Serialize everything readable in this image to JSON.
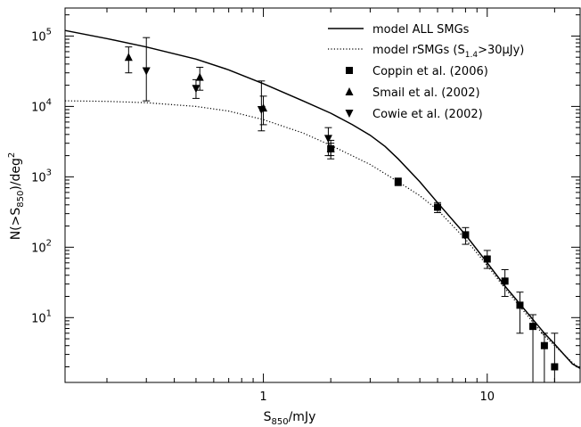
{
  "chart_data": {
    "type": "scatter",
    "title": "",
    "xlabel": {
      "main": "S",
      "sub": "850",
      "tail": "/mJy"
    },
    "ylabel": {
      "pre": "N(>S",
      "sub": "850",
      "mid": ")/deg",
      "sup": "2"
    },
    "xscale": "log",
    "yscale": "log",
    "xlim": [
      0.13,
      26
    ],
    "ylim": [
      1.2,
      250000
    ],
    "grid": false,
    "legend_position": "top-right",
    "x_tick_labels": [
      {
        "value": 1,
        "label": "1"
      },
      {
        "value": 10,
        "label": "10"
      }
    ],
    "y_tick_labels": [
      {
        "value": 10,
        "base": "10",
        "exp": "1"
      },
      {
        "value": 100,
        "base": "10",
        "exp": "2"
      },
      {
        "value": 1000,
        "base": "10",
        "exp": "3"
      },
      {
        "value": 10000,
        "base": "10",
        "exp": "4"
      },
      {
        "value": 100000,
        "base": "10",
        "exp": "5"
      }
    ],
    "series": [
      {
        "name": "model ALL SMGs",
        "style": "solid",
        "points": [
          [
            0.13,
            120000
          ],
          [
            0.2,
            92000
          ],
          [
            0.3,
            70000
          ],
          [
            0.5,
            47000
          ],
          [
            0.7,
            33000
          ],
          [
            1.0,
            21000
          ],
          [
            1.5,
            12000
          ],
          [
            2.0,
            8000
          ],
          [
            2.5,
            5500
          ],
          [
            3.0,
            3900
          ],
          [
            3.5,
            2700
          ],
          [
            4.0,
            1800
          ],
          [
            5.0,
            850
          ],
          [
            6.0,
            430
          ],
          [
            8.0,
            150
          ],
          [
            10.0,
            60
          ],
          [
            12.0,
            28
          ],
          [
            15.0,
            12
          ],
          [
            18.0,
            6
          ],
          [
            20.0,
            4.2
          ],
          [
            22.0,
            3
          ],
          [
            24.0,
            2.2
          ],
          [
            26.0,
            1.9
          ]
        ]
      },
      {
        "name": "model rSMGs (S",
        "name_sub": "1.4",
        "name_tail": ">30μJy)",
        "style": "dotted",
        "points": [
          [
            0.13,
            12000
          ],
          [
            0.2,
            11800
          ],
          [
            0.3,
            11300
          ],
          [
            0.5,
            10000
          ],
          [
            0.7,
            8600
          ],
          [
            1.0,
            6500
          ],
          [
            1.5,
            4200
          ],
          [
            2.0,
            2800
          ],
          [
            3.0,
            1500
          ],
          [
            4.0,
            850
          ],
          [
            5.0,
            540
          ],
          [
            6.0,
            340
          ],
          [
            8.0,
            130
          ],
          [
            10.0,
            55
          ],
          [
            12.0,
            26
          ],
          [
            15.0,
            11
          ],
          [
            18.0,
            5.5
          ],
          [
            20.0,
            4
          ],
          [
            22.0,
            3
          ],
          [
            24.0,
            2.3
          ],
          [
            26.0,
            1.9
          ]
        ]
      },
      {
        "name": "Coppin et al. (2006)",
        "marker": "square",
        "points": [
          {
            "x": 2.0,
            "y": 2500,
            "lo": 2000,
            "hi": 3000
          },
          {
            "x": 4.0,
            "y": 850,
            "lo": 750,
            "hi": 960
          },
          {
            "x": 6.0,
            "y": 370,
            "lo": 310,
            "hi": 430
          },
          {
            "x": 8.0,
            "y": 150,
            "lo": 110,
            "hi": 190
          },
          {
            "x": 10.0,
            "y": 68,
            "lo": 50,
            "hi": 90
          },
          {
            "x": 12.0,
            "y": 33,
            "lo": 20,
            "hi": 48
          },
          {
            "x": 14.0,
            "y": 15,
            "lo": 6,
            "hi": 23
          },
          {
            "x": 16.0,
            "y": 7.5,
            "lo": 1.2,
            "hi": 11
          },
          {
            "x": 18.0,
            "y": 4,
            "lo": 1.2,
            "hi": 6
          },
          {
            "x": 20.0,
            "y": 2,
            "lo": 1.2,
            "hi": 6
          }
        ]
      },
      {
        "name": "Smail et al. (2002)",
        "marker": "triangle-up",
        "points": [
          {
            "x": 0.25,
            "y": 50000,
            "lo": 30000,
            "hi": 70000
          },
          {
            "x": 0.52,
            "y": 26000,
            "lo": 17000,
            "hi": 36000
          },
          {
            "x": 1.0,
            "y": 9500,
            "lo": 5500,
            "hi": 14000
          },
          {
            "x": 2.0,
            "y": 2500,
            "lo": 1800,
            "hi": 3300
          }
        ]
      },
      {
        "name": "Cowie et al. (2002)",
        "marker": "triangle-down",
        "points": [
          {
            "x": 0.3,
            "y": 32000,
            "lo": 12000,
            "hi": 95000
          },
          {
            "x": 0.5,
            "y": 18000,
            "lo": 13000,
            "hi": 24000
          },
          {
            "x": 0.98,
            "y": 9000,
            "lo": 4500,
            "hi": 23000
          },
          {
            "x": 1.95,
            "y": 3500,
            "lo": 2000,
            "hi": 5000
          }
        ]
      }
    ]
  }
}
